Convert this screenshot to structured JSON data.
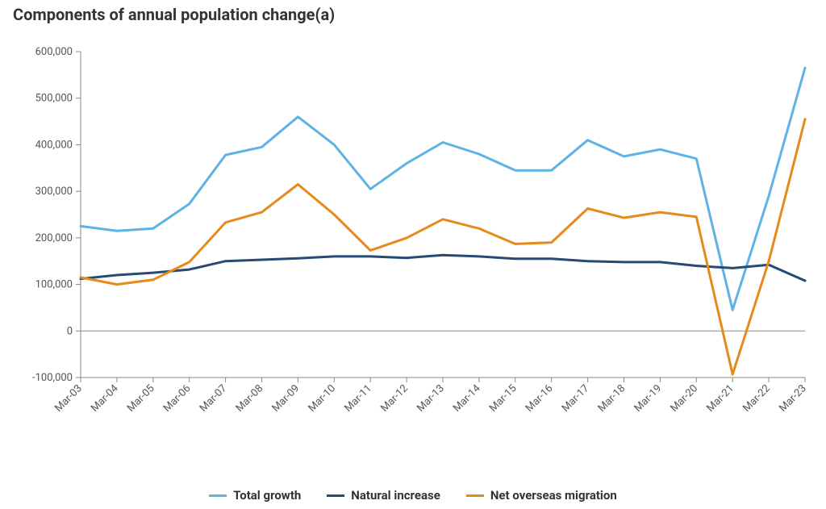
{
  "chart": {
    "type": "line",
    "title": "Components of annual population change(a)",
    "title_fontsize": 20,
    "title_weight": "bold",
    "background_color": "#ffffff",
    "axis_color": "#888888",
    "zero_line_color": "#888888",
    "ytick_color": "#555555",
    "xtick_color": "#555555",
    "tick_fontsize": 13,
    "legend_fontsize": 15,
    "legend_weight": "bold",
    "line_width": 3,
    "ylim": [
      -100000,
      600000
    ],
    "ytick_step": 100000,
    "ytick_labels": [
      "-100,000",
      "0",
      "100,000",
      "200,000",
      "300,000",
      "400,000",
      "500,000",
      "600,000"
    ],
    "categories": [
      "Mar-03",
      "Mar-04",
      "Mar-05",
      "Mar-06",
      "Mar-07",
      "Mar-08",
      "Mar-09",
      "Mar-10",
      "Mar-11",
      "Mar-12",
      "Mar-13",
      "Mar-14",
      "Mar-15",
      "Mar-16",
      "Mar-17",
      "Mar-18",
      "Mar-19",
      "Mar-20",
      "Mar-21",
      "Mar-22",
      "Mar-23"
    ],
    "series": [
      {
        "name": "Total growth",
        "color": "#5eb3e4",
        "values": [
          225000,
          215000,
          220000,
          273000,
          378000,
          395000,
          460000,
          400000,
          305000,
          360000,
          405000,
          380000,
          345000,
          345000,
          410000,
          375000,
          390000,
          370000,
          45000,
          290000,
          565000
        ]
      },
      {
        "name": "Natural increase",
        "color": "#264a73",
        "values": [
          112000,
          120000,
          125000,
          132000,
          150000,
          153000,
          156000,
          160000,
          160000,
          157000,
          163000,
          160000,
          155000,
          155000,
          150000,
          148000,
          148000,
          140000,
          135000,
          142000,
          108000
        ]
      },
      {
        "name": "Net overseas migration",
        "color": "#e8891c",
        "values": [
          115000,
          100000,
          110000,
          148000,
          233000,
          255000,
          315000,
          250000,
          173000,
          200000,
          240000,
          220000,
          187000,
          190000,
          263000,
          243000,
          255000,
          245000,
          -93000,
          150000,
          455000
        ]
      }
    ]
  }
}
